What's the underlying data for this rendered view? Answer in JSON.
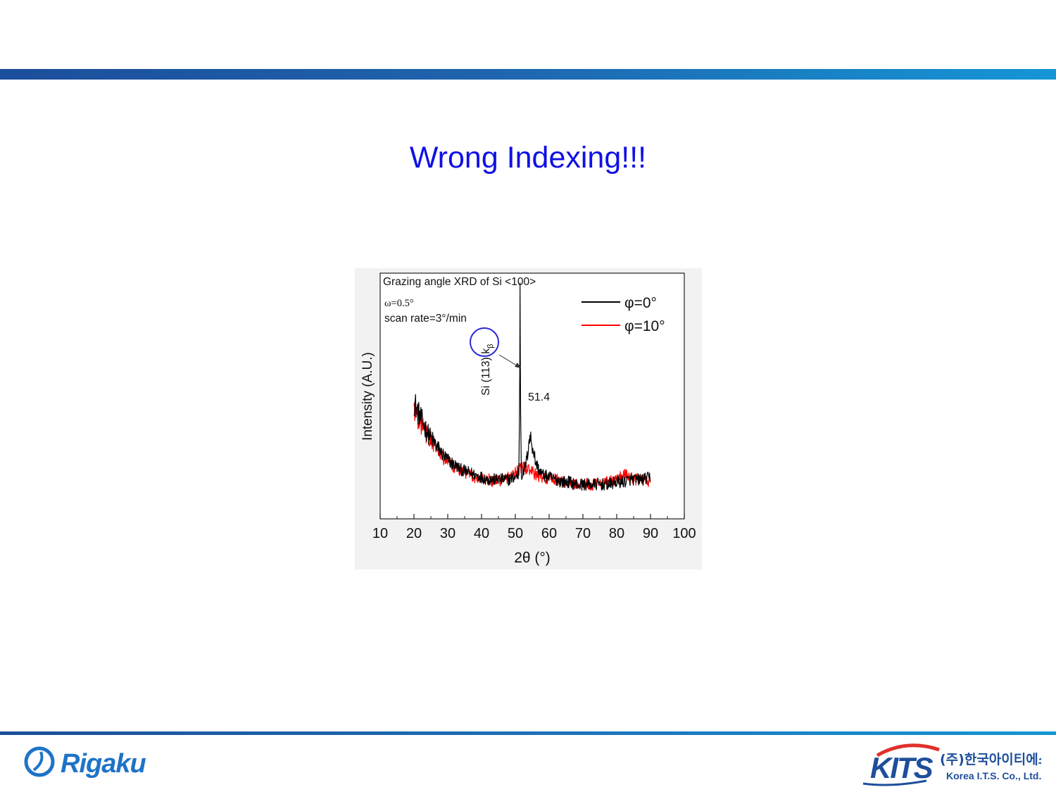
{
  "slide": {
    "title": "Wrong Indexing!!!"
  },
  "colors": {
    "title": "#1010e6",
    "band_start": "#1b4e9b",
    "band_end": "#1596d6",
    "series_phi0": "#000000",
    "series_phi10": "#ff0000",
    "circle": "#2a2ad8"
  },
  "chart_data": {
    "type": "line",
    "title": "Grazing angle XRD of Si <100>",
    "conditions": [
      "ω=0.5°",
      "scan rate=3°/min"
    ],
    "xlabel": "2θ (°)",
    "ylabel": "Intensity (A.U.)",
    "xlim": [
      10,
      100
    ],
    "ylim": [
      0,
      100
    ],
    "x_ticks": [
      10,
      20,
      30,
      40,
      50,
      60,
      70,
      80,
      90,
      100
    ],
    "x_tick_labels": [
      "10",
      "20",
      "30",
      "40",
      "50",
      "60",
      "70",
      "80",
      "90",
      "100"
    ],
    "y_ticks_labeled": false,
    "grid": false,
    "legend_position": "top-right",
    "series": [
      {
        "name": "φ=0°",
        "color": "#000000",
        "x": [
          20,
          21,
          22,
          23,
          24,
          25,
          26,
          27,
          28,
          30,
          32,
          34,
          36,
          38,
          40,
          42,
          44,
          46,
          48,
          50,
          51,
          51.3,
          51.4,
          51.5,
          51.8,
          52.5,
          53.5,
          54,
          54.5,
          55,
          55.5,
          56,
          57,
          58,
          60,
          62,
          64,
          66,
          68,
          70,
          72,
          74,
          76,
          78,
          80,
          82,
          84,
          86,
          88,
          90
        ],
        "y": [
          48,
          44,
          41,
          38,
          35,
          33,
          31,
          29,
          27,
          24,
          22,
          20,
          19,
          18,
          17,
          16,
          16,
          16,
          16,
          17,
          18,
          50,
          96,
          50,
          18,
          19,
          25,
          32,
          33,
          30,
          27,
          23,
          20,
          18,
          17,
          16,
          15,
          15,
          14,
          14,
          14,
          14,
          14,
          14,
          15,
          15,
          16,
          16,
          16,
          17
        ]
      },
      {
        "name": "φ=10°",
        "color": "#ff0000",
        "x": [
          20,
          21,
          22,
          23,
          24,
          25,
          26,
          27,
          28,
          30,
          32,
          34,
          36,
          38,
          40,
          42,
          44,
          46,
          48,
          50,
          52,
          54,
          56,
          58,
          60,
          62,
          64,
          66,
          68,
          70,
          72,
          74,
          76,
          78,
          80,
          82,
          84,
          86,
          88,
          90
        ],
        "y": [
          46,
          42,
          39,
          36,
          34,
          32,
          30,
          28,
          26,
          23,
          21,
          19,
          18,
          17,
          16,
          16,
          15,
          16,
          17,
          19,
          21,
          20,
          18,
          17,
          16,
          16,
          15,
          15,
          14,
          14,
          14,
          14,
          15,
          15,
          16,
          18,
          17,
          16,
          16,
          15
        ]
      }
    ],
    "annotations": [
      {
        "text": "Si (113) kβ",
        "text_main": "Si (113) k",
        "text_sub": "β",
        "x": 51.4,
        "orientation": "vertical",
        "arrow_to_peak": true
      },
      {
        "text": "51.4",
        "x": 51.4
      }
    ]
  },
  "footer": {
    "left_logo": "Rigaku",
    "right_logo_mark": "KITS",
    "right_logo_name_ko": "(주)한국아이티에스",
    "right_logo_name_en": "Korea I.T.S. Co., Ltd."
  }
}
